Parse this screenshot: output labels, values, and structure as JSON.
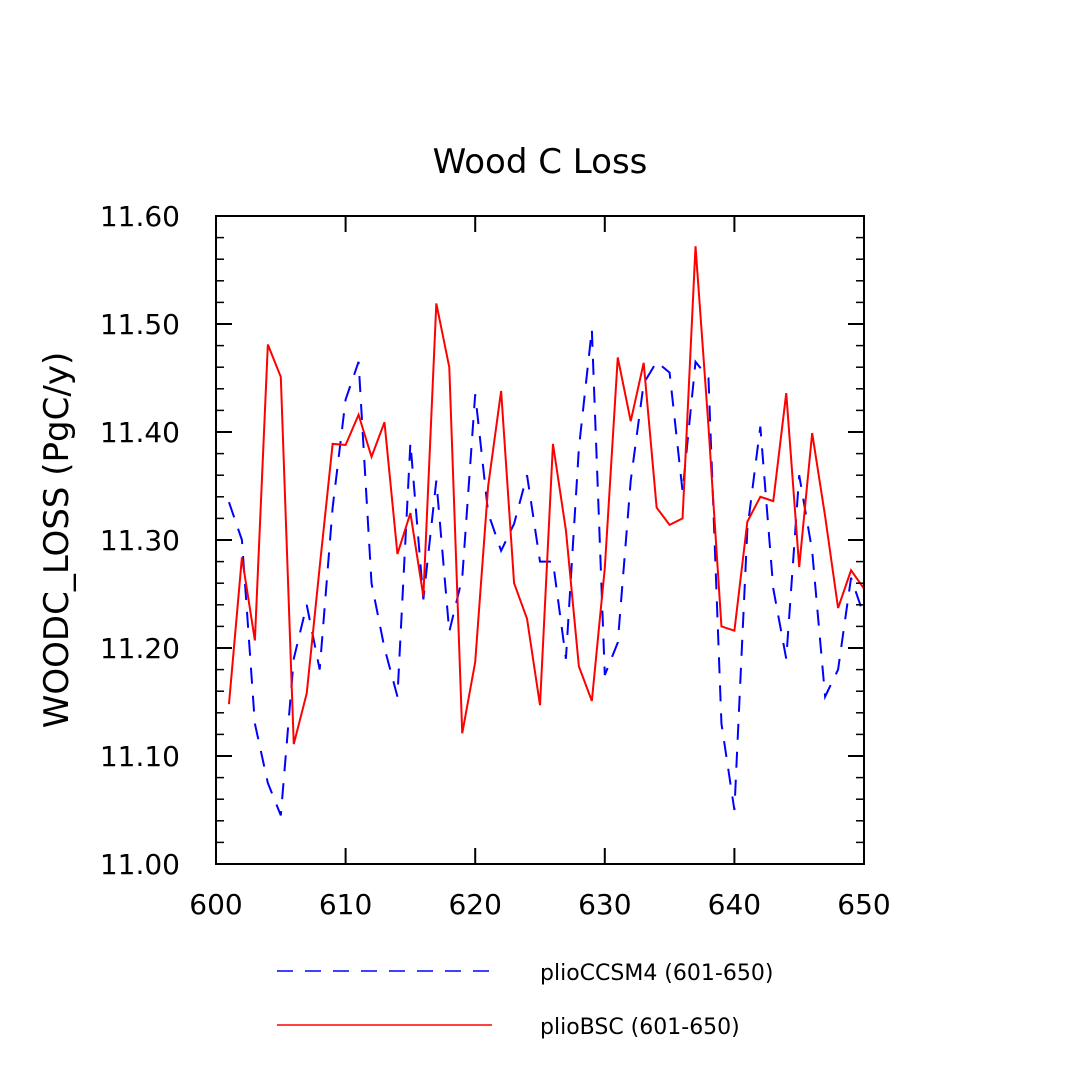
{
  "chart_data": {
    "type": "line",
    "title": "Wood C Loss",
    "xlabel": "",
    "ylabel": "WOODC_LOSS  (PgC/y)",
    "xlim": [
      600,
      650
    ],
    "ylim": [
      11.0,
      11.6
    ],
    "xticks": [
      600,
      610,
      620,
      630,
      640,
      650
    ],
    "xtick_labels": [
      "600",
      "610",
      "620",
      "630",
      "640",
      "650"
    ],
    "yticks": [
      11.0,
      11.1,
      11.2,
      11.3,
      11.4,
      11.5,
      11.6
    ],
    "ytick_labels": [
      "11.00",
      "11.10",
      "11.20",
      "11.30",
      "11.40",
      "11.50",
      "11.60"
    ],
    "grid": false,
    "legend_position": "bottom",
    "x": [
      601,
      602,
      603,
      604,
      605,
      606,
      607,
      608,
      609,
      610,
      611,
      612,
      613,
      614,
      615,
      616,
      617,
      618,
      619,
      620,
      621,
      622,
      623,
      624,
      625,
      626,
      627,
      628,
      629,
      630,
      631,
      632,
      633,
      634,
      635,
      636,
      637,
      638,
      639,
      640,
      641,
      642,
      643,
      644,
      645,
      646,
      647,
      648,
      649,
      650
    ],
    "series": [
      {
        "name": "plioCCSM4 (601-650)",
        "color": "#0000ff",
        "style": "dashed",
        "values": [
          11.335,
          11.3,
          11.13,
          11.075,
          11.045,
          11.19,
          11.24,
          11.18,
          11.33,
          11.43,
          11.465,
          11.26,
          11.2,
          11.155,
          11.39,
          11.245,
          11.355,
          11.215,
          11.265,
          11.435,
          11.325,
          11.29,
          11.315,
          11.36,
          11.28,
          11.28,
          11.19,
          11.385,
          11.495,
          11.175,
          11.205,
          11.355,
          11.445,
          11.465,
          11.455,
          11.345,
          11.465,
          11.45,
          11.13,
          11.05,
          11.31,
          11.405,
          11.255,
          11.19,
          11.36,
          11.29,
          11.155,
          11.18,
          11.265,
          11.23
        ]
      },
      {
        "name": "plioBSC (601-650)",
        "color": "#ff0000",
        "style": "solid",
        "values": [
          11.148,
          11.284,
          11.207,
          11.481,
          11.451,
          11.111,
          11.158,
          11.275,
          11.389,
          11.388,
          11.416,
          11.377,
          11.409,
          11.287,
          11.325,
          11.248,
          11.519,
          11.46,
          11.121,
          11.187,
          11.35,
          11.438,
          11.26,
          11.227,
          11.147,
          11.389,
          11.309,
          11.183,
          11.151,
          11.274,
          11.469,
          11.41,
          11.464,
          11.33,
          11.314,
          11.32,
          11.572,
          11.405,
          11.22,
          11.216,
          11.317,
          11.34,
          11.336,
          11.436,
          11.275,
          11.399,
          11.322,
          11.237,
          11.272,
          11.255
        ]
      }
    ]
  }
}
